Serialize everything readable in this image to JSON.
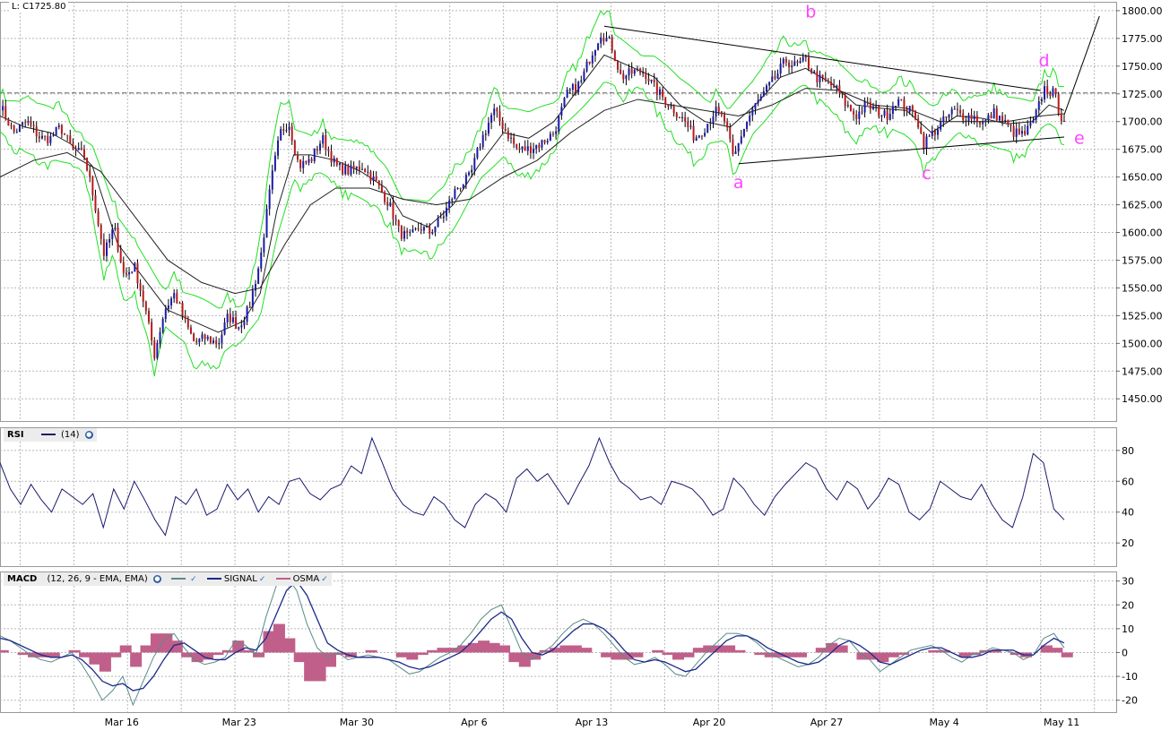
{
  "last_price_label": "L: C1725.80",
  "panels": {
    "rsi": {
      "name": "RSI",
      "params": "(14)"
    },
    "macd": {
      "name": "MACD",
      "params": "(12, 26, 9 - EMA, EMA)",
      "signal_label": "SIGNAL",
      "osma_label": "OSMA"
    }
  },
  "colors": {
    "candle_up": "#1a1aa8",
    "candle_down": "#b81a1a",
    "bands": "#22e022",
    "ma": "#222222",
    "rsi_line": "#1a1a6e",
    "macd_line": "#5a8a8a",
    "signal_line": "#1a2a8a",
    "osma": "#c0608a",
    "pattern": "#ff44ff"
  },
  "chart_data": [
    {
      "type": "candlestick",
      "y_ticks": [
        "1800.00",
        "1775.00",
        "1750.00",
        "1725.00",
        "1700.00",
        "1675.00",
        "1650.00",
        "1625.00",
        "1600.00",
        "1575.00",
        "1550.00",
        "1525.00",
        "1500.00",
        "1475.00",
        "1450.00"
      ],
      "ylim": [
        1430,
        1808
      ],
      "x_tick_labels": [
        "Mar 16",
        "Mar 23",
        "Mar 30",
        "Apr 6",
        "Apr 13",
        "Apr 20",
        "Apr 27",
        "May 4",
        "May 11"
      ],
      "last_price": 1725.8,
      "price_path": [
        [
          0,
          1715
        ],
        [
          0.8,
          1690
        ],
        [
          1.6,
          1700
        ],
        [
          2.4,
          1685
        ],
        [
          3,
          1685
        ],
        [
          3.6,
          1695
        ],
        [
          4.3,
          1675
        ],
        [
          5,
          1670
        ],
        [
          5.6,
          1630
        ],
        [
          6.2,
          1580
        ],
        [
          6.8,
          1605
        ],
        [
          7.4,
          1560
        ],
        [
          8,
          1570
        ],
        [
          8.6,
          1535
        ],
        [
          9.2,
          1490
        ],
        [
          9.8,
          1530
        ],
        [
          10.4,
          1545
        ],
        [
          11,
          1520
        ],
        [
          11.6,
          1500
        ],
        [
          12.2,
          1505
        ],
        [
          13,
          1500
        ],
        [
          13.6,
          1525
        ],
        [
          14.2,
          1515
        ],
        [
          14.8,
          1530
        ],
        [
          15.5,
          1575
        ],
        [
          16.2,
          1650
        ],
        [
          16.7,
          1690
        ],
        [
          17.2,
          1700
        ],
        [
          17.8,
          1660
        ],
        [
          18.5,
          1665
        ],
        [
          19.2,
          1685
        ],
        [
          20,
          1660
        ],
        [
          20.8,
          1655
        ],
        [
          21.6,
          1660
        ],
        [
          22.4,
          1645
        ],
        [
          23.2,
          1625
        ],
        [
          23.8,
          1600
        ],
        [
          24.4,
          1595
        ],
        [
          25,
          1605
        ],
        [
          25.6,
          1600
        ],
        [
          26.4,
          1615
        ],
        [
          27.2,
          1640
        ],
        [
          28,
          1650
        ],
        [
          28.6,
          1680
        ],
        [
          29.4,
          1710
        ],
        [
          30.2,
          1690
        ],
        [
          30.8,
          1675
        ],
        [
          31.4,
          1675
        ],
        [
          32.2,
          1680
        ],
        [
          33,
          1690
        ],
        [
          33.8,
          1725
        ],
        [
          34.6,
          1735
        ],
        [
          35.2,
          1760
        ],
        [
          35.8,
          1780
        ],
        [
          36.4,
          1770
        ],
        [
          37,
          1740
        ],
        [
          37.8,
          1745
        ],
        [
          38.4,
          1745
        ],
        [
          39,
          1730
        ],
        [
          39.6,
          1720
        ],
        [
          40.2,
          1710
        ],
        [
          40.8,
          1700
        ],
        [
          41.4,
          1685
        ],
        [
          42,
          1695
        ],
        [
          42.6,
          1710
        ],
        [
          43.2,
          1700
        ],
        [
          43.7,
          1665
        ],
        [
          44.2,
          1690
        ],
        [
          44.8,
          1710
        ],
        [
          45.5,
          1725
        ],
        [
          46.2,
          1740
        ],
        [
          46.8,
          1755
        ],
        [
          47.4,
          1750
        ],
        [
          48,
          1755
        ],
        [
          48.6,
          1740
        ],
        [
          49.2,
          1735
        ],
        [
          49.8,
          1730
        ],
        [
          50.4,
          1715
        ],
        [
          51,
          1705
        ],
        [
          51.6,
          1715
        ],
        [
          52.2,
          1710
        ],
        [
          52.8,
          1705
        ],
        [
          53.4,
          1720
        ],
        [
          54,
          1712
        ],
        [
          54.6,
          1705
        ],
        [
          55,
          1680
        ],
        [
          55.6,
          1690
        ],
        [
          56.2,
          1700
        ],
        [
          56.8,
          1710
        ],
        [
          57.4,
          1705
        ],
        [
          58,
          1705
        ],
        [
          58.6,
          1698
        ],
        [
          59.2,
          1708
        ],
        [
          59.8,
          1700
        ],
        [
          60.4,
          1690
        ],
        [
          61,
          1688
        ],
        [
          61.6,
          1700
        ],
        [
          62.2,
          1730
        ],
        [
          62.8,
          1725
        ],
        [
          63.2,
          1705
        ],
        [
          63.4,
          1703
        ]
      ],
      "ma_fast_path": [
        [
          0,
          1705
        ],
        [
          1.5,
          1695
        ],
        [
          3,
          1690
        ],
        [
          4.2,
          1680
        ],
        [
          5.5,
          1660
        ],
        [
          7,
          1590
        ],
        [
          8.5,
          1560
        ],
        [
          10,
          1530
        ],
        [
          11.5,
          1520
        ],
        [
          13,
          1510
        ],
        [
          14.5,
          1520
        ],
        [
          15.5,
          1545
        ],
        [
          16.5,
          1620
        ],
        [
          17.5,
          1670
        ],
        [
          18.5,
          1670
        ],
        [
          20,
          1665
        ],
        [
          21.5,
          1655
        ],
        [
          23,
          1640
        ],
        [
          24,
          1615
        ],
        [
          25.5,
          1605
        ],
        [
          27,
          1625
        ],
        [
          28.5,
          1660
        ],
        [
          30,
          1690
        ],
        [
          31.5,
          1685
        ],
        [
          33,
          1700
        ],
        [
          34.5,
          1730
        ],
        [
          36,
          1760
        ],
        [
          37.5,
          1750
        ],
        [
          39,
          1740
        ],
        [
          40.5,
          1715
        ],
        [
          42,
          1700
        ],
        [
          43.5,
          1695
        ],
        [
          45,
          1715
        ],
        [
          46.5,
          1740
        ],
        [
          48,
          1748
        ],
        [
          49.5,
          1735
        ],
        [
          51,
          1715
        ],
        [
          52.5,
          1712
        ],
        [
          54,
          1710
        ],
        [
          55.5,
          1690
        ],
        [
          57,
          1705
        ],
        [
          58.5,
          1703
        ],
        [
          60,
          1698
        ],
        [
          61.5,
          1700
        ],
        [
          62.5,
          1715
        ],
        [
          63.4,
          1710
        ]
      ],
      "ma_slow_path": [
        [
          0,
          1650
        ],
        [
          2,
          1665
        ],
        [
          4,
          1672
        ],
        [
          6,
          1655
        ],
        [
          8,
          1615
        ],
        [
          10,
          1575
        ],
        [
          12,
          1555
        ],
        [
          14,
          1545
        ],
        [
          15.5,
          1550
        ],
        [
          17,
          1590
        ],
        [
          18.5,
          1625
        ],
        [
          20,
          1640
        ],
        [
          22,
          1640
        ],
        [
          24,
          1630
        ],
        [
          26,
          1625
        ],
        [
          28,
          1630
        ],
        [
          30,
          1650
        ],
        [
          32,
          1665
        ],
        [
          34,
          1690
        ],
        [
          36,
          1710
        ],
        [
          38,
          1720
        ],
        [
          40,
          1715
        ],
        [
          42,
          1710
        ],
        [
          44,
          1705
        ],
        [
          46,
          1715
        ],
        [
          48,
          1730
        ],
        [
          50,
          1728
        ],
        [
          52,
          1715
        ],
        [
          54,
          1712
        ],
        [
          56,
          1700
        ],
        [
          58,
          1700
        ],
        [
          60,
          1700
        ],
        [
          62,
          1705
        ],
        [
          63.4,
          1707
        ]
      ],
      "trendlines": [
        {
          "from": [
            36,
            1786
          ],
          "to": [
            62,
            1728
          ]
        },
        {
          "from": [
            44,
            1662
          ],
          "to": [
            63.4,
            1686
          ]
        },
        {
          "from": [
            63.4,
            1706
          ],
          "to": [
            65.5,
            1795
          ]
        }
      ],
      "labels": [
        {
          "text": "a",
          "x": 44,
          "y": 1640
        },
        {
          "text": "b",
          "x": 48.3,
          "y": 1794
        },
        {
          "text": "c",
          "x": 55.2,
          "y": 1648
        },
        {
          "text": "d",
          "x": 62.2,
          "y": 1750
        },
        {
          "text": "e",
          "x": 64.3,
          "y": 1680
        }
      ]
    },
    {
      "type": "line",
      "name": "RSI",
      "y_ticks": [
        "80",
        "60",
        "40",
        "20"
      ],
      "ylim": [
        5,
        95
      ],
      "values": [
        72,
        55,
        45,
        58,
        48,
        40,
        55,
        50,
        45,
        52,
        30,
        55,
        42,
        60,
        48,
        35,
        25,
        50,
        45,
        55,
        38,
        42,
        58,
        48,
        55,
        40,
        50,
        45,
        60,
        62,
        52,
        48,
        55,
        58,
        70,
        65,
        88,
        72,
        55,
        45,
        40,
        38,
        50,
        45,
        35,
        30,
        45,
        52,
        48,
        40,
        62,
        68,
        60,
        65,
        55,
        45,
        58,
        70,
        88,
        72,
        60,
        55,
        48,
        50,
        45,
        60,
        58,
        55,
        48,
        38,
        42,
        62,
        55,
        45,
        38,
        50,
        58,
        65,
        72,
        68,
        55,
        48,
        60,
        55,
        42,
        50,
        62,
        58,
        40,
        35,
        42,
        60,
        55,
        50,
        48,
        58,
        45,
        35,
        30,
        50,
        78,
        72,
        42,
        35
      ]
    },
    {
      "type": "line",
      "name": "MACD",
      "y_ticks": [
        "30",
        "20",
        "10",
        "0",
        "-10",
        "-20"
      ],
      "ylim": [
        -25,
        34
      ],
      "macd": [
        7,
        5,
        2,
        -1,
        -3,
        -4,
        -2,
        0,
        -5,
        -12,
        -20,
        -16,
        -10,
        -22,
        -12,
        -2,
        5,
        8,
        2,
        -3,
        -5,
        -4,
        -2,
        5,
        3,
        -1,
        15,
        28,
        32,
        26,
        12,
        2,
        -2,
        0,
        -3,
        -2,
        -1,
        -2,
        -3,
        -6,
        -9,
        -8,
        -5,
        -2,
        0,
        3,
        8,
        14,
        18,
        20,
        10,
        0,
        -3,
        0,
        3,
        8,
        12,
        14,
        12,
        8,
        3,
        -2,
        -5,
        -4,
        -2,
        -5,
        -9,
        -10,
        -5,
        0,
        4,
        8,
        8,
        7,
        4,
        0,
        -2,
        -4,
        -6,
        -5,
        -2,
        3,
        6,
        5,
        0,
        -3,
        -8,
        -5,
        -2,
        1,
        2,
        3,
        1,
        -2,
        -4,
        -1,
        0,
        2,
        1,
        0,
        -3,
        -1,
        6,
        8,
        2
      ],
      "signal": [
        6,
        5,
        3,
        1,
        -1,
        -2,
        -2,
        -1,
        -3,
        -7,
        -12,
        -14,
        -13,
        -16,
        -15,
        -10,
        -3,
        3,
        4,
        1,
        -2,
        -3,
        -3,
        0,
        2,
        1,
        6,
        16,
        26,
        30,
        24,
        14,
        4,
        1,
        -1,
        -2,
        -2,
        -2,
        -3,
        -4,
        -6,
        -7,
        -6,
        -4,
        -2,
        0,
        4,
        9,
        14,
        17,
        14,
        6,
        0,
        -1,
        1,
        5,
        9,
        12,
        12,
        10,
        6,
        1,
        -3,
        -4,
        -3,
        -4,
        -6,
        -8,
        -7,
        -3,
        1,
        5,
        7,
        7,
        5,
        2,
        0,
        -2,
        -4,
        -5,
        -4,
        -1,
        3,
        5,
        3,
        0,
        -4,
        -5,
        -3,
        -1,
        1,
        2,
        2,
        0,
        -2,
        -2,
        -1,
        1,
        1,
        1,
        -1,
        -1,
        3,
        6,
        4
      ],
      "osma": [
        1,
        0,
        -1,
        -2,
        -2,
        -2,
        0,
        1,
        -2,
        -5,
        -8,
        -2,
        3,
        -6,
        3,
        8,
        8,
        5,
        -2,
        -4,
        -3,
        -1,
        1,
        5,
        1,
        -2,
        9,
        12,
        6,
        -4,
        -12,
        -12,
        -6,
        -1,
        -2,
        0,
        1,
        0,
        0,
        -2,
        -3,
        -1,
        1,
        2,
        2,
        3,
        4,
        5,
        4,
        3,
        -4,
        -6,
        -3,
        1,
        2,
        3,
        3,
        2,
        0,
        -2,
        -3,
        -3,
        -2,
        0,
        1,
        -1,
        -3,
        -2,
        2,
        3,
        3,
        3,
        1,
        0,
        -1,
        -2,
        -2,
        -2,
        -2,
        0,
        2,
        4,
        3,
        0,
        -3,
        -3,
        -4,
        -2,
        -1,
        0,
        0,
        1,
        1,
        0,
        -2,
        -1,
        1,
        1,
        0,
        -1,
        -2,
        0,
        3,
        2,
        -2
      ]
    }
  ]
}
